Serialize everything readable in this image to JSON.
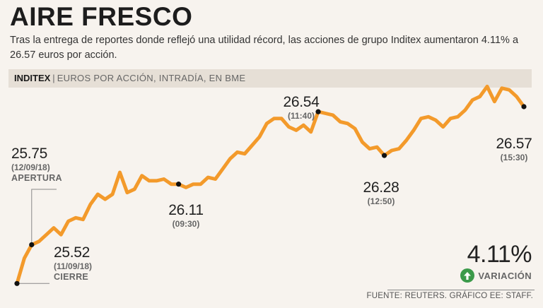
{
  "title": "AIRE FRESCO",
  "subtitle": "Tras la entrega de reportes donde reflejó una utilidad récord, las acciones de grupo Inditex aumentaron 4.11% a 26.57 euros por acción.",
  "header_band": {
    "brand": "INDITEX",
    "separator": "|",
    "units": "EUROS POR ACCIÓN, INTRADÍA, EN BME"
  },
  "colors": {
    "line": "#f39a2b",
    "accent_green": "#3b9a4a",
    "background": "#f7f3ee",
    "band": "#e6dfd6"
  },
  "chart_data": {
    "type": "line",
    "title": "AIRE FRESCO",
    "ylabel": "Euros por acción",
    "xlabel": "",
    "ylim": [
      25.45,
      26.7
    ],
    "series": [
      {
        "name": "Inditex",
        "values": [
          25.52,
          25.67,
          25.75,
          25.77,
          25.81,
          25.85,
          25.81,
          25.89,
          25.91,
          25.9,
          25.99,
          26.05,
          26.02,
          26.05,
          26.18,
          26.06,
          26.08,
          26.16,
          26.13,
          26.13,
          26.14,
          26.11,
          26.11,
          26.09,
          26.11,
          26.11,
          26.15,
          26.14,
          26.2,
          26.26,
          26.3,
          26.29,
          26.34,
          26.39,
          26.47,
          26.5,
          26.5,
          26.45,
          26.43,
          26.46,
          26.42,
          26.54,
          26.53,
          26.52,
          26.48,
          26.47,
          26.44,
          26.36,
          26.32,
          26.33,
          26.28,
          26.31,
          26.32,
          26.37,
          26.43,
          26.5,
          26.51,
          26.49,
          26.45,
          26.5,
          26.51,
          26.55,
          26.61,
          26.63,
          26.69,
          26.6,
          26.68,
          26.67,
          26.63,
          26.57
        ]
      }
    ],
    "annotations": [
      {
        "value": "25.75",
        "time": "(12/09/18)",
        "tag": "APERTURA"
      },
      {
        "value": "25.52",
        "time": "(11/09/18)",
        "tag": "CIERRE"
      },
      {
        "value": "26.11",
        "time": "(09:30)"
      },
      {
        "value": "26.54",
        "time": "(11:40)"
      },
      {
        "value": "26.28",
        "time": "(12:50)"
      },
      {
        "value": "26.57",
        "time": "(15:30)"
      }
    ],
    "marked_points": [
      {
        "index": 0,
        "value": 25.52
      },
      {
        "index": 2,
        "value": 25.75
      },
      {
        "index": 22,
        "value": 26.11
      },
      {
        "index": 41,
        "value": 26.54
      },
      {
        "index": 50,
        "value": 26.28
      },
      {
        "index": 69,
        "value": 26.57
      }
    ]
  },
  "variation": {
    "percent": "4.11%",
    "label": "VARIACIÓN"
  },
  "source": "FUENTE: REUTERS. GRÁFICO EE: STAFF."
}
